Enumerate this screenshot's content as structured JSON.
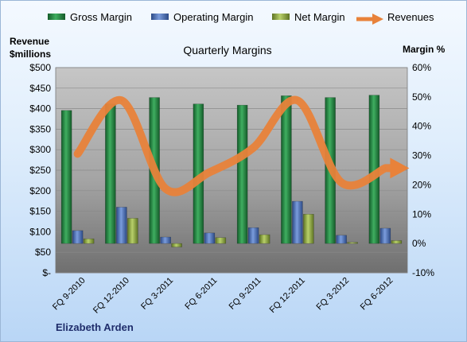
{
  "chart_data": {
    "type": "bar",
    "title": "Quarterly Margins",
    "categories": [
      "FQ 9-2010",
      "FQ 12-2010",
      "FQ 3-2011",
      "FQ 6-2011",
      "FQ 9-2011",
      "FQ 12-2011",
      "FQ 3-2012",
      "FQ 6-2012"
    ],
    "left_axis": {
      "label_line1": "Revenue",
      "label_line2": "$millions",
      "ylim": [
        0,
        500
      ],
      "ticks": [
        0,
        50,
        100,
        150,
        200,
        250,
        300,
        350,
        400,
        450,
        500
      ],
      "tick_labels": [
        "$-",
        "$50",
        "$100",
        "$150",
        "$200",
        "$250",
        "$300",
        "$350",
        "$400",
        "$450",
        "$500"
      ]
    },
    "right_axis": {
      "label": "Margin %",
      "ylim": [
        -10,
        60
      ],
      "ticks": [
        -10,
        0,
        10,
        20,
        30,
        40,
        50,
        60
      ],
      "tick_labels": [
        "-10%",
        "0%",
        "10%",
        "20%",
        "30%",
        "40%",
        "50%",
        "60%"
      ]
    },
    "series": [
      {
        "name": "Gross Margin",
        "type": "bar",
        "axis": "right",
        "color": "#1e7a3c",
        "values": [
          45.4,
          47.6,
          49.8,
          47.6,
          47.2,
          50.4,
          49.8,
          50.6
        ]
      },
      {
        "name": "Operating Margin",
        "type": "bar",
        "axis": "right",
        "color": "#4a6eb0",
        "values": [
          4.4,
          12.4,
          2.2,
          3.6,
          5.4,
          14.4,
          2.8,
          5.2
        ]
      },
      {
        "name": "Net Margin",
        "type": "bar",
        "axis": "right",
        "color": "#8ca843",
        "values": [
          1.6,
          8.6,
          -1.2,
          2.0,
          3.0,
          10.0,
          0.4,
          1.0
        ]
      },
      {
        "name": "Revenues",
        "type": "line",
        "axis": "left",
        "color": "#e8823a",
        "values": [
          290,
          420,
          205,
          245,
          305,
          420,
          220,
          255
        ]
      }
    ],
    "grid": true,
    "legend_position": "top"
  },
  "caption": "Elizabeth Arden"
}
